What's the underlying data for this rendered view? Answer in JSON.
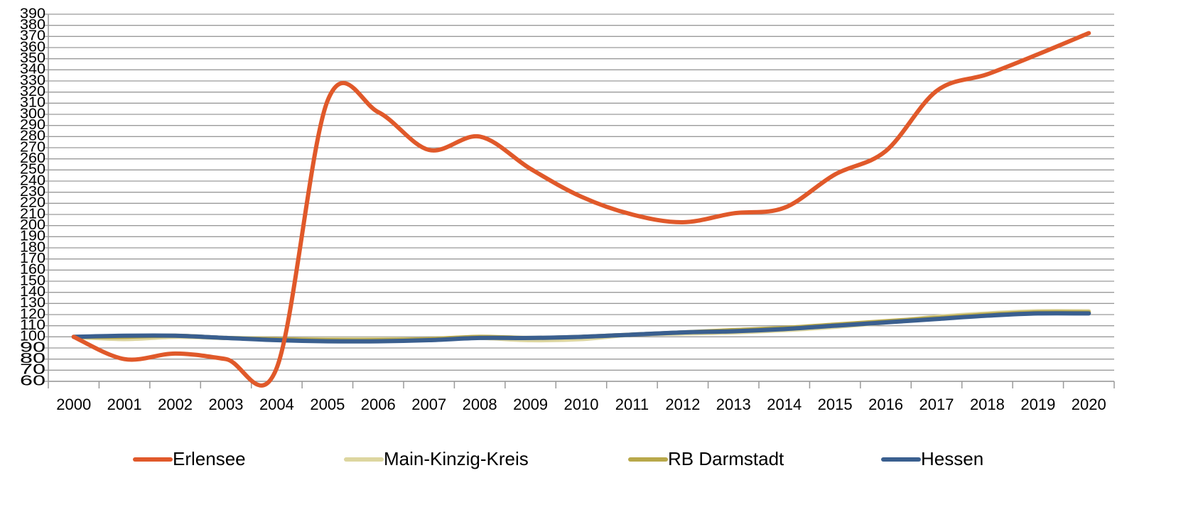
{
  "chart_data": {
    "type": "line",
    "categories": [
      "2000",
      "2001",
      "2002",
      "2003",
      "2004",
      "2005",
      "2006",
      "2007",
      "2008",
      "2009",
      "2010",
      "2011",
      "2012",
      "2013",
      "2014",
      "2015",
      "2016",
      "2017",
      "2018",
      "2019",
      "2020"
    ],
    "series": [
      {
        "name": "Erlensee",
        "color": "#e0592a",
        "values": [
          100,
          80,
          85,
          80,
          72,
          312,
          302,
          268,
          280,
          251,
          226,
          210,
          203,
          211,
          216,
          246,
          267,
          321,
          336,
          354,
          373
        ]
      },
      {
        "name": "Main-Kinzig-Kreis",
        "color": "#ddd6a0",
        "values": [
          100,
          98,
          100,
          99,
          98,
          98,
          98,
          98,
          99,
          97,
          98,
          102,
          103,
          104,
          106,
          109,
          113,
          118,
          121,
          123,
          123
        ]
      },
      {
        "name": "RB Darmstadt",
        "color": "#b8a84a",
        "values": [
          100,
          100,
          101,
          99,
          98,
          97,
          97,
          98,
          100,
          99,
          100,
          102,
          104,
          106,
          108,
          111,
          114,
          117,
          120,
          122,
          122
        ]
      },
      {
        "name": "Hessen",
        "color": "#3a5f8f",
        "values": [
          100,
          101,
          101,
          99,
          97,
          96,
          96,
          97,
          99,
          99,
          100,
          102,
          104,
          105,
          107,
          110,
          113,
          116,
          119,
          121,
          121
        ]
      }
    ],
    "ylim": [
      60,
      390
    ],
    "yticks": [
      60,
      70,
      80,
      90,
      100,
      110,
      120,
      130,
      140,
      150,
      160,
      170,
      180,
      190,
      200,
      210,
      220,
      230,
      240,
      250,
      260,
      270,
      280,
      290,
      300,
      310,
      320,
      330,
      340,
      350,
      360,
      370,
      380,
      390
    ],
    "grid": true,
    "legend": "bottom"
  }
}
